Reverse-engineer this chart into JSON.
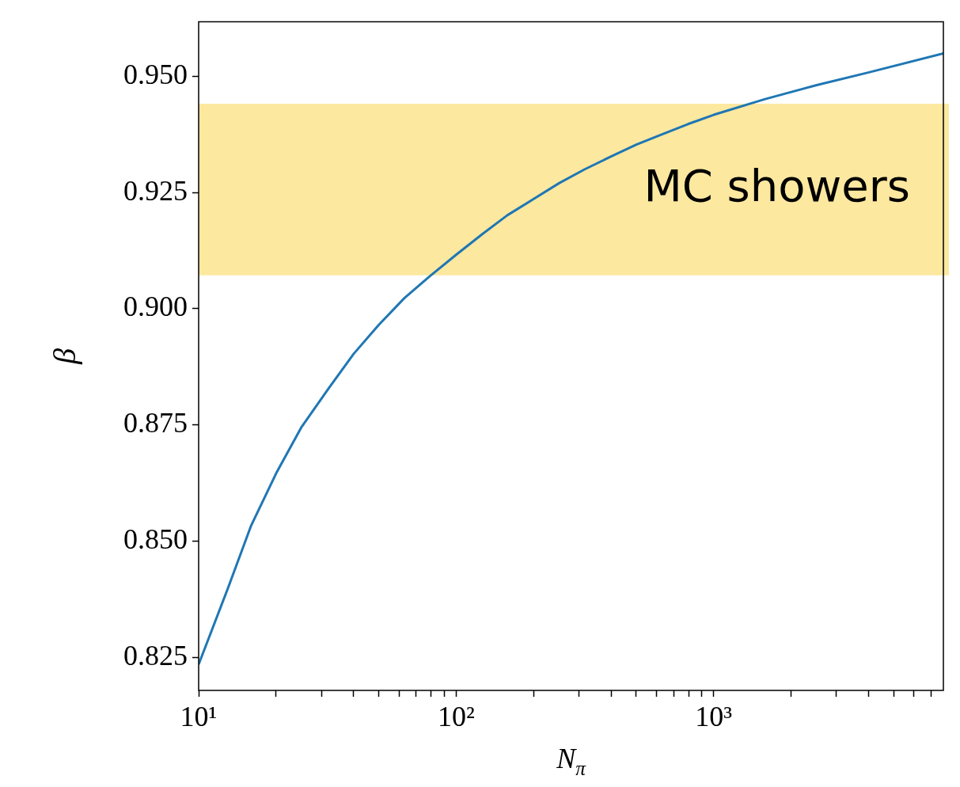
{
  "chart_data": {
    "type": "line",
    "xlabel": "N$_{π}$",
    "ylabel": "β",
    "log": "x",
    "x": [
      10,
      13,
      16,
      20,
      25,
      32,
      40,
      50,
      63,
      79,
      100,
      126,
      158,
      200,
      251,
      316,
      398,
      501,
      631,
      794,
      1000,
      1585,
      2512,
      3981,
      7800
    ],
    "series": [
      {
        "color": "#1f77b4",
        "values": [
          0.8235,
          0.8399,
          0.8534,
          0.8646,
          0.8744,
          0.8829,
          0.8903,
          0.8965,
          0.9023,
          0.907,
          0.9116,
          0.916,
          0.9201,
          0.9236,
          0.927,
          0.93,
          0.9327,
          0.9353,
          0.9375,
          0.9397,
          0.9417,
          0.9451,
          0.9481,
          0.9508,
          0.9549
        ]
      }
    ],
    "xlim": [
      10,
      7800
    ],
    "ylim": [
      0.8179,
      0.9617
    ],
    "xticks": [
      {
        "value": 10,
        "label": "10¹"
      },
      {
        "value": 20,
        "label": null
      },
      {
        "value": 30,
        "label": null
      },
      {
        "value": 40,
        "label": null
      },
      {
        "value": 50,
        "label": null
      },
      {
        "value": 60,
        "label": null
      },
      {
        "value": 70,
        "label": null
      },
      {
        "value": 80,
        "label": null
      },
      {
        "value": 90,
        "label": null
      },
      {
        "value": 100,
        "label": "10²"
      },
      {
        "value": 200,
        "label": null
      },
      {
        "value": 300,
        "label": null
      },
      {
        "value": 400,
        "label": null
      },
      {
        "value": 500,
        "label": null
      },
      {
        "value": 600,
        "label": null
      },
      {
        "value": 700,
        "label": null
      },
      {
        "value": 800,
        "label": null
      },
      {
        "value": 900,
        "label": null
      },
      {
        "value": 1000,
        "label": "10³"
      },
      {
        "value": 2000,
        "label": null
      },
      {
        "value": 3000,
        "label": null
      },
      {
        "value": 4000,
        "label": null
      },
      {
        "value": 5000,
        "label": null
      },
      {
        "value": 6000,
        "label": null
      },
      {
        "value": 7000,
        "label": null
      }
    ],
    "yticks": [
      {
        "value": 0.825,
        "label": "0.825"
      },
      {
        "value": 0.85,
        "label": "0.850"
      },
      {
        "value": 0.875,
        "label": "0.875"
      },
      {
        "value": 0.9,
        "label": "0.900"
      },
      {
        "value": 0.925,
        "label": "0.925"
      },
      {
        "value": 0.95,
        "label": "0.950"
      }
    ],
    "bands": [
      {
        "axis": "y",
        "from": 0.9072,
        "to": 0.9441,
        "label": "MC showers",
        "color": "#fde8a0"
      }
    ],
    "grid": false,
    "legend": false,
    "marker": "none",
    "line_style": "solid"
  }
}
